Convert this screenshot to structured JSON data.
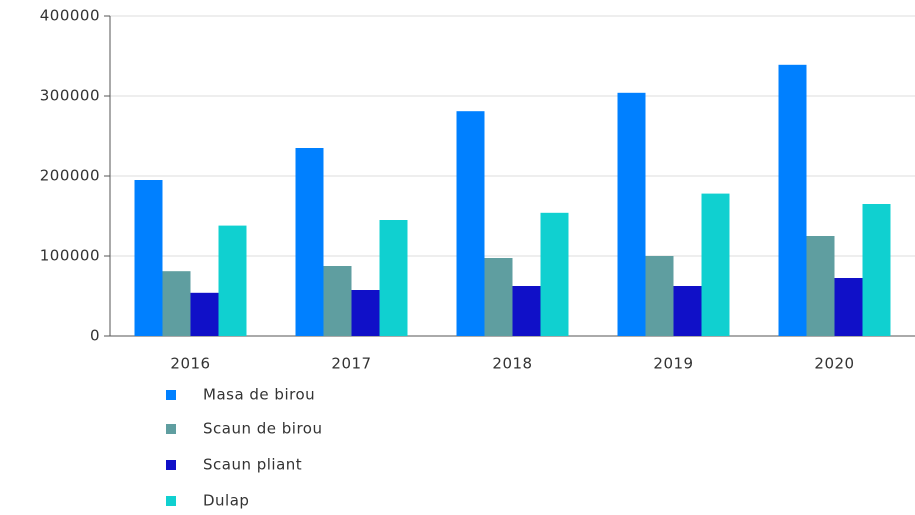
{
  "chart_data": {
    "type": "bar",
    "categories": [
      "2016",
      "2017",
      "2018",
      "2019",
      "2020"
    ],
    "series": [
      {
        "name": "Masa de birou",
        "color": "#0080ff",
        "values": [
          195000,
          235000,
          281000,
          304000,
          339000
        ]
      },
      {
        "name": "Scaun de birou",
        "color": "#5f9ea0",
        "values": [
          81000,
          87500,
          97500,
          100000,
          125000
        ]
      },
      {
        "name": "Scaun pliant",
        "color": "#1010c8",
        "values": [
          54000,
          57500,
          62500,
          62500,
          72500
        ]
      },
      {
        "name": "Dulap",
        "color": "#10d0d0",
        "values": [
          138000,
          145000,
          154000,
          178000,
          165000
        ]
      }
    ],
    "ylim": [
      0,
      400000
    ],
    "yticks": [
      0,
      100000,
      200000,
      300000,
      400000
    ],
    "grid": true
  }
}
